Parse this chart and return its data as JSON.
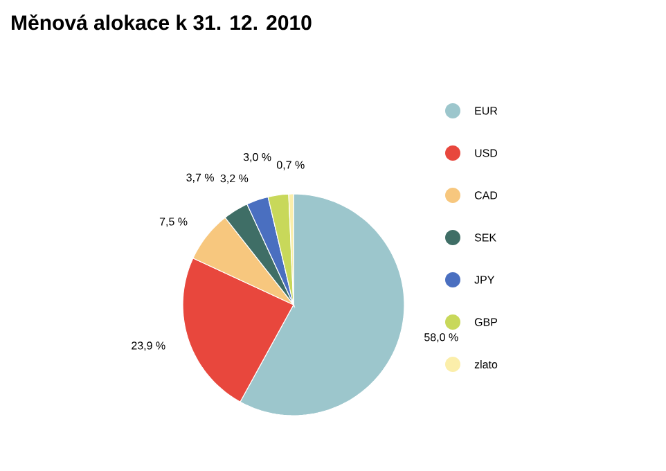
{
  "chart_data": {
    "type": "pie",
    "title": "Měnová alokace k 31. 12. 2010",
    "categories": [
      "EUR",
      "USD",
      "CAD",
      "SEK",
      "JPY",
      "GBP",
      "zlato"
    ],
    "values": [
      58.0,
      23.9,
      7.5,
      3.7,
      3.2,
      3.0,
      0.7
    ],
    "value_labels": [
      "58,0 %",
      "23,9 %",
      "7,5 %",
      "3,7 %",
      "3,2 %",
      "3,0 %",
      "0,7 %"
    ],
    "colors": [
      "#9cc6cc",
      "#e8473d",
      "#f7c77e",
      "#3f6e66",
      "#4a6fc0",
      "#c8d85a",
      "#fbeeaa"
    ],
    "legend": "right"
  }
}
